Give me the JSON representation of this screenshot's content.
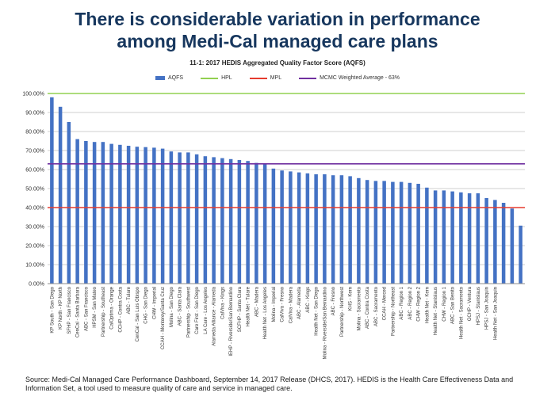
{
  "slide": {
    "title_line1": "There is considerable variation in performance",
    "title_line2": "among Medi-Cal managed care plans",
    "source": "Source: Medi-Cal Managed Care Performance Dashboard, September 14, 2017 Release (DHCS, 2017). HEDIS is the Health Care Effectiveness Data and Information Set, a tool used to measure quality of care and service in managed care."
  },
  "colors": {
    "title": "#17375e",
    "bar": "#4472c4",
    "hpl": "#92d050",
    "mpl": "#e53c2e",
    "mcmc": "#7030a0",
    "grid": "#bfbfbf"
  },
  "chart_data": {
    "type": "bar",
    "title": "11-1: 2017 HEDIS Aggregated Quality Factor Score (AQFS)",
    "xlabel": "",
    "ylabel": "",
    "ylim": [
      0,
      100
    ],
    "ytick_step": 10,
    "ytick_format": "percent_2dp",
    "grid": true,
    "legend_position": "top",
    "series": [
      {
        "name": "AQFS",
        "type": "bar",
        "color": "#4472c4",
        "values": [
          98,
          93,
          85,
          76,
          75,
          74.5,
          74.5,
          73.5,
          73,
          72.5,
          72,
          71.8,
          71.5,
          71,
          69.5,
          69,
          69,
          68,
          67,
          66.5,
          66,
          65.5,
          65,
          64.5,
          63.5,
          63,
          60.5,
          59.5,
          59,
          58.5,
          58,
          57.5,
          57.5,
          57,
          57,
          56.5,
          55.5,
          54.5,
          54,
          54,
          53.5,
          53.5,
          53,
          52.5,
          50.5,
          49,
          49,
          48.5,
          48,
          47.5,
          47.5,
          45,
          44,
          42.5,
          39.5,
          30.5
        ]
      },
      {
        "name": "HPL",
        "type": "line",
        "color": "#92d050",
        "value": 100
      },
      {
        "name": "MPL",
        "type": "line",
        "color": "#e53c2e",
        "value": 40
      },
      {
        "name": "MCMC Weighted Average - 63%",
        "type": "line",
        "color": "#7030a0",
        "value": 63
      }
    ],
    "categories": [
      "KP South - San Diego",
      "KP North - KP North",
      "SFHP - San Francisco",
      "CenCal - Santa Barbara",
      "ABC - San Francisco",
      "HPSM - San Mateo",
      "Partnership - Southeast",
      "CalOptima - Orange",
      "CCHP - Contra Costa",
      "ABC - Tulare",
      "CenCal - San Luis Obispo",
      "CHG - San Diego",
      "CHW - Imperial",
      "CCAH - Monterey/Santa Cruz",
      "Molina - San Diego",
      "ABC - Santa Clara",
      "Partnership - Southwest",
      "Care First - San Diego",
      "LA Care - Los Angeles",
      "Alameda Alliance - Alameda",
      "CalViva - Kings",
      "IEHP - Riverside/San Bernardino",
      "SCFHP - Santa Clara",
      "Health Net - Tulare",
      "ABC - Madera",
      "Health Net - Los Angeles",
      "Molina - Imperial",
      "CalViva - Fresno",
      "CalViva - Madera",
      "ABC - Alameda",
      "ABC - Kings",
      "Health Net - San Diego",
      "Molina - Riverside/San Bernardino",
      "ABC - Fresno",
      "Partnership - Northwest",
      "KHS - Kern",
      "Molina - Sacramento",
      "ABC - Contra Costa",
      "ABC - Sacramento",
      "CCAH - Merced",
      "Partnership - Northeast",
      "ABC - Region 1",
      "ABC - Region 2",
      "CHW - Region 2",
      "Health Net - Kern",
      "Health Net - Stanislaus",
      "CHW - Region 1",
      "ABC - San Benito",
      "Health Net - Sacramento",
      "GCHP - Ventura",
      "HPSJ - Stanislaus",
      "HPSJ - San Joaquin",
      "Health Net - San Joaquin",
      "",
      "",
      ""
    ]
  }
}
